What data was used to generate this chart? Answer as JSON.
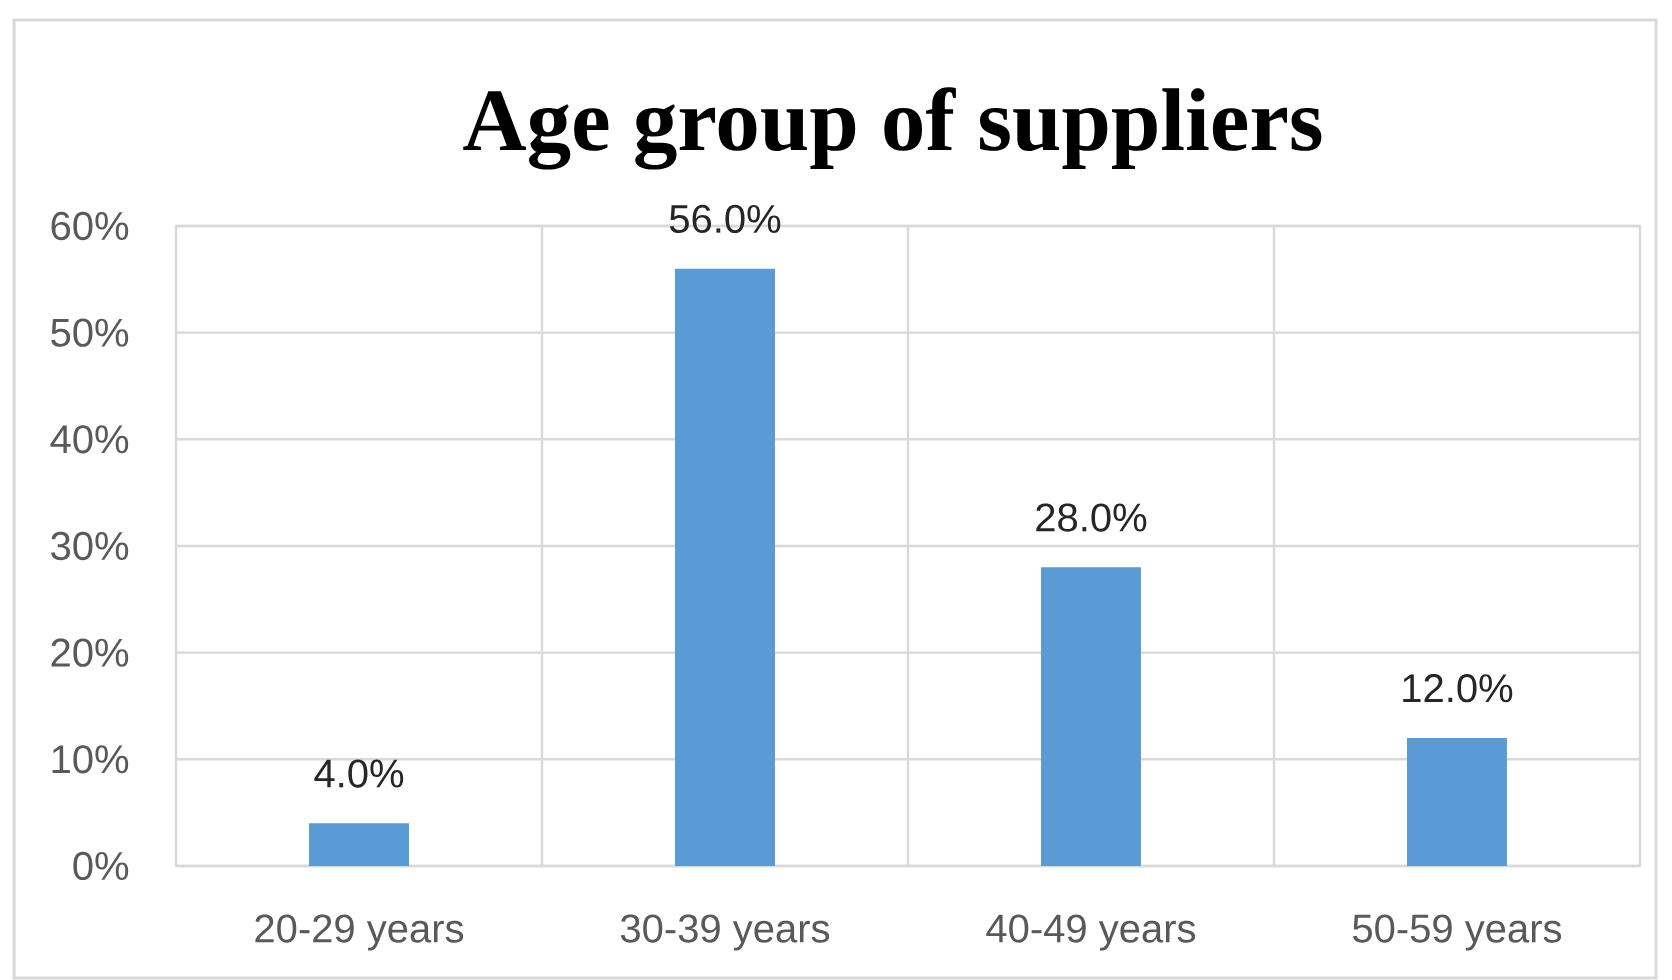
{
  "chart_data": {
    "type": "bar",
    "title": "Age group of suppliers",
    "categories": [
      "20-29 years",
      "30-39 years",
      "40-49 years",
      "50-59 years"
    ],
    "values": [
      4,
      56,
      28,
      12
    ],
    "value_labels": [
      "4.0%",
      "56.0%",
      "28.0%",
      "12.0%"
    ],
    "color": "#5b9bd5",
    "ylim": [
      0,
      60
    ],
    "yticks": [
      {
        "value": 0,
        "label": "0%"
      },
      {
        "value": 10,
        "label": "10%"
      },
      {
        "value": 20,
        "label": "20%"
      },
      {
        "value": 30,
        "label": "30%"
      },
      {
        "value": 40,
        "label": "40%"
      },
      {
        "value": 50,
        "label": "50%"
      },
      {
        "value": 60,
        "label": "60%"
      }
    ],
    "grid": true
  }
}
